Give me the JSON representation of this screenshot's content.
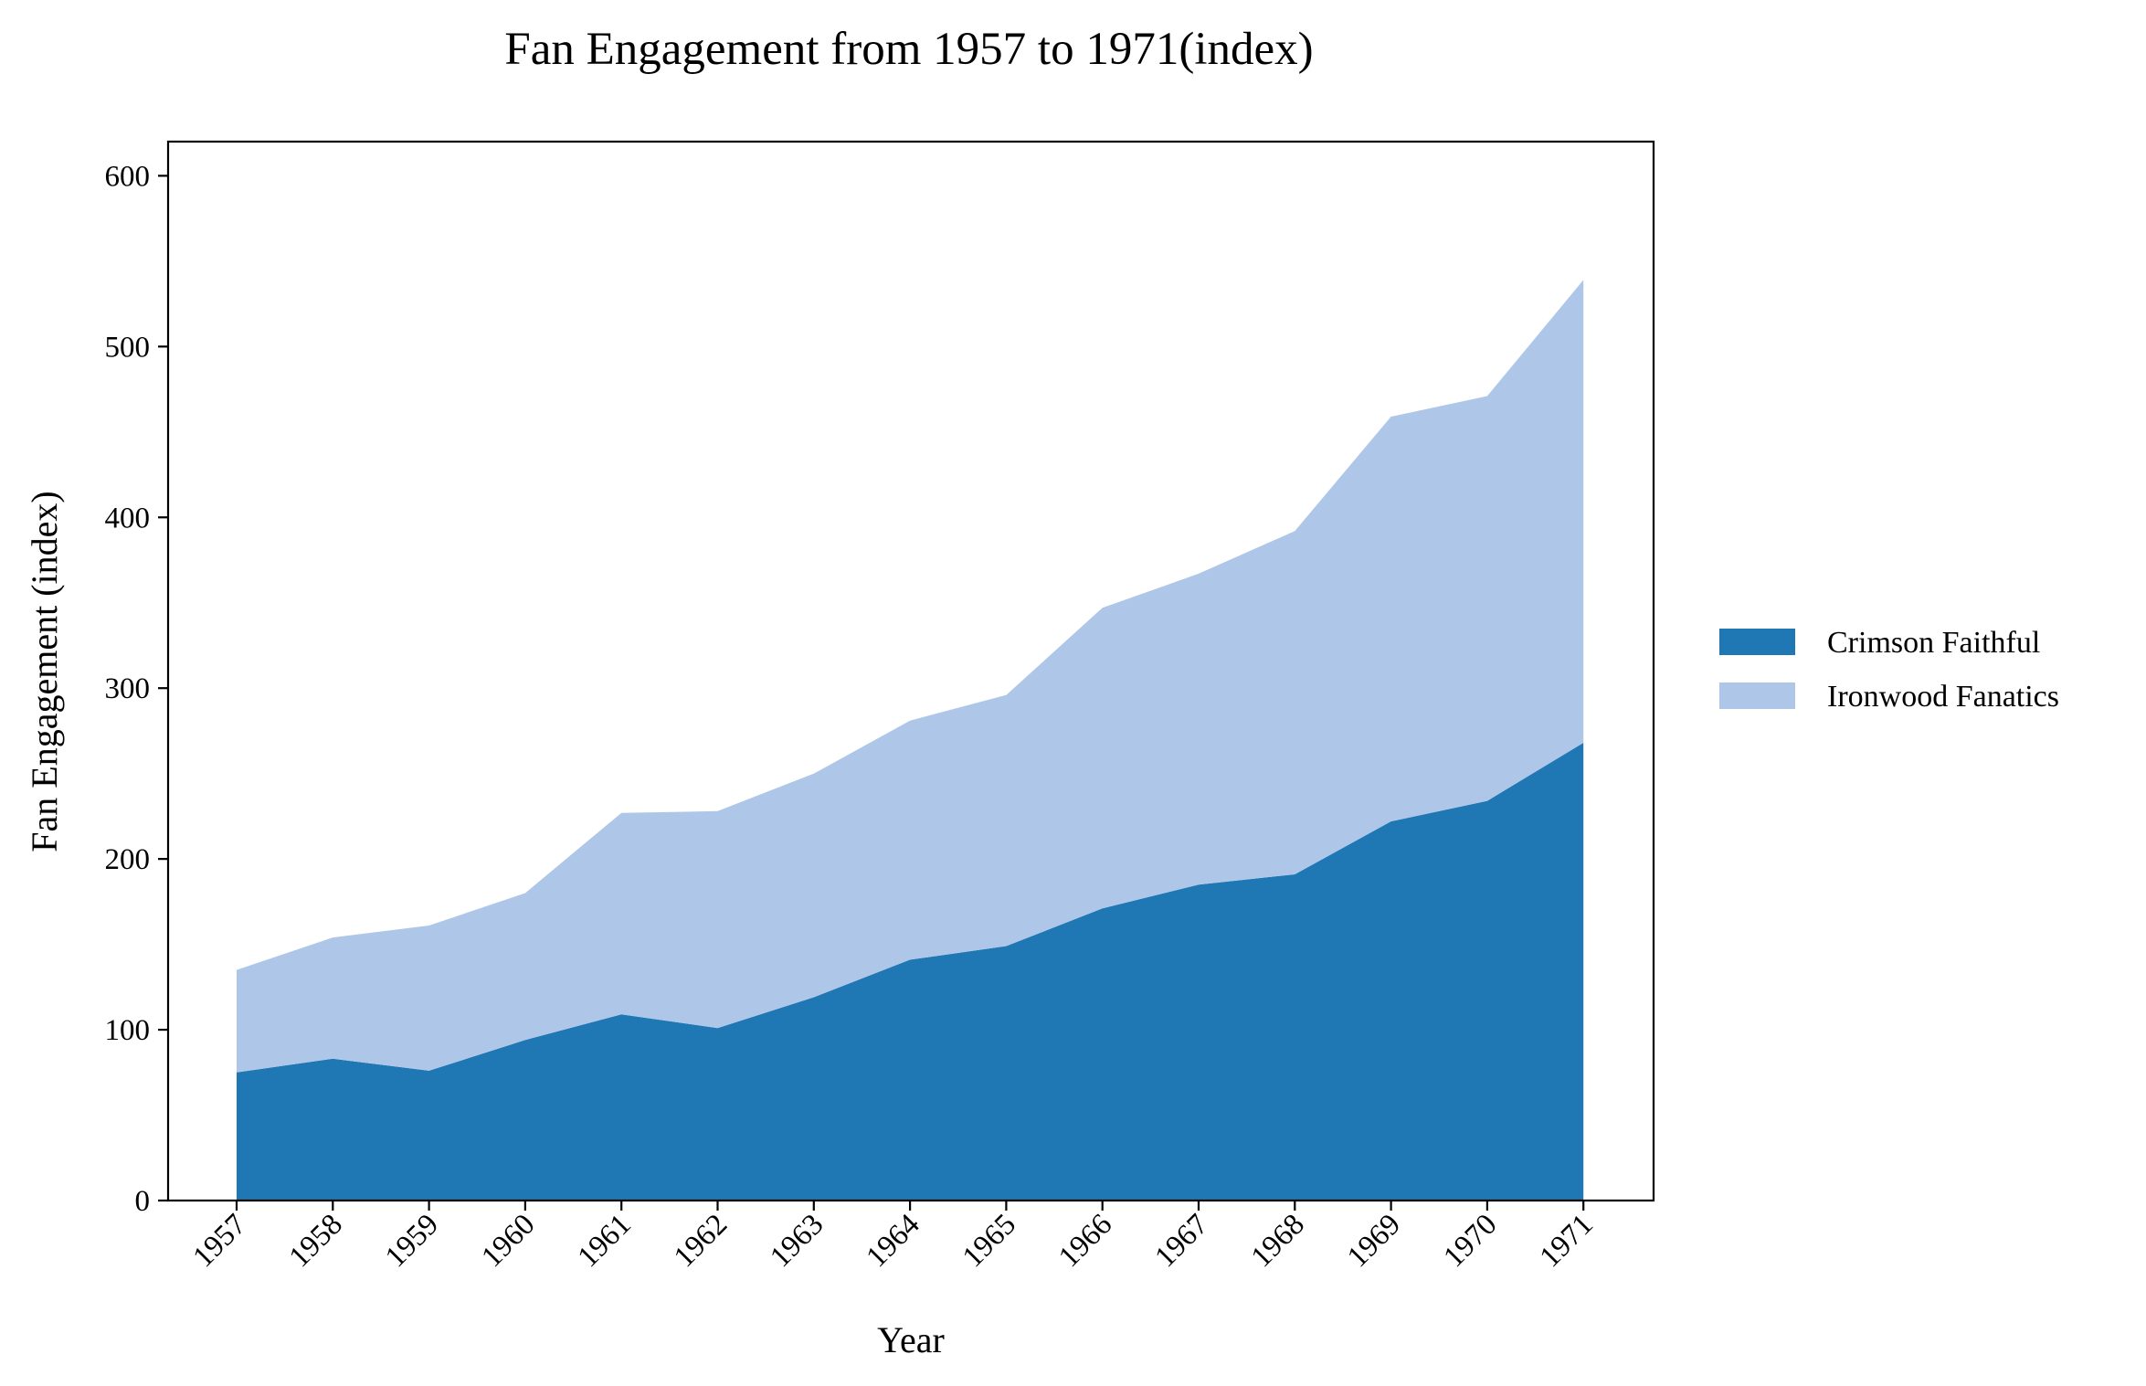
{
  "chart_data": {
    "type": "area",
    "stacked": true,
    "title": "Fan Engagement from 1957 to 1971(index)",
    "xlabel": "Year",
    "ylabel": "Fan Engagement (index)",
    "x": [
      "1957",
      "1958",
      "1959",
      "1960",
      "1961",
      "1962",
      "1963",
      "1964",
      "1965",
      "1966",
      "1967",
      "1968",
      "1969",
      "1970",
      "1971"
    ],
    "ylim": [
      0,
      620
    ],
    "yticks": [
      0,
      100,
      200,
      300,
      400,
      500,
      600
    ],
    "grid": false,
    "legend_position": "right",
    "series": [
      {
        "name": "Crimson Faithful",
        "color": "#1f77b4",
        "values": [
          75,
          83,
          76,
          94,
          109,
          101,
          119,
          141,
          149,
          171,
          185,
          191,
          222,
          234,
          268
        ]
      },
      {
        "name": "Ironwood Fanatics",
        "color": "#aec7e8",
        "values": [
          60,
          71,
          85,
          86,
          118,
          127,
          131,
          140,
          147,
          176,
          182,
          201,
          237,
          237,
          271
        ]
      }
    ]
  }
}
